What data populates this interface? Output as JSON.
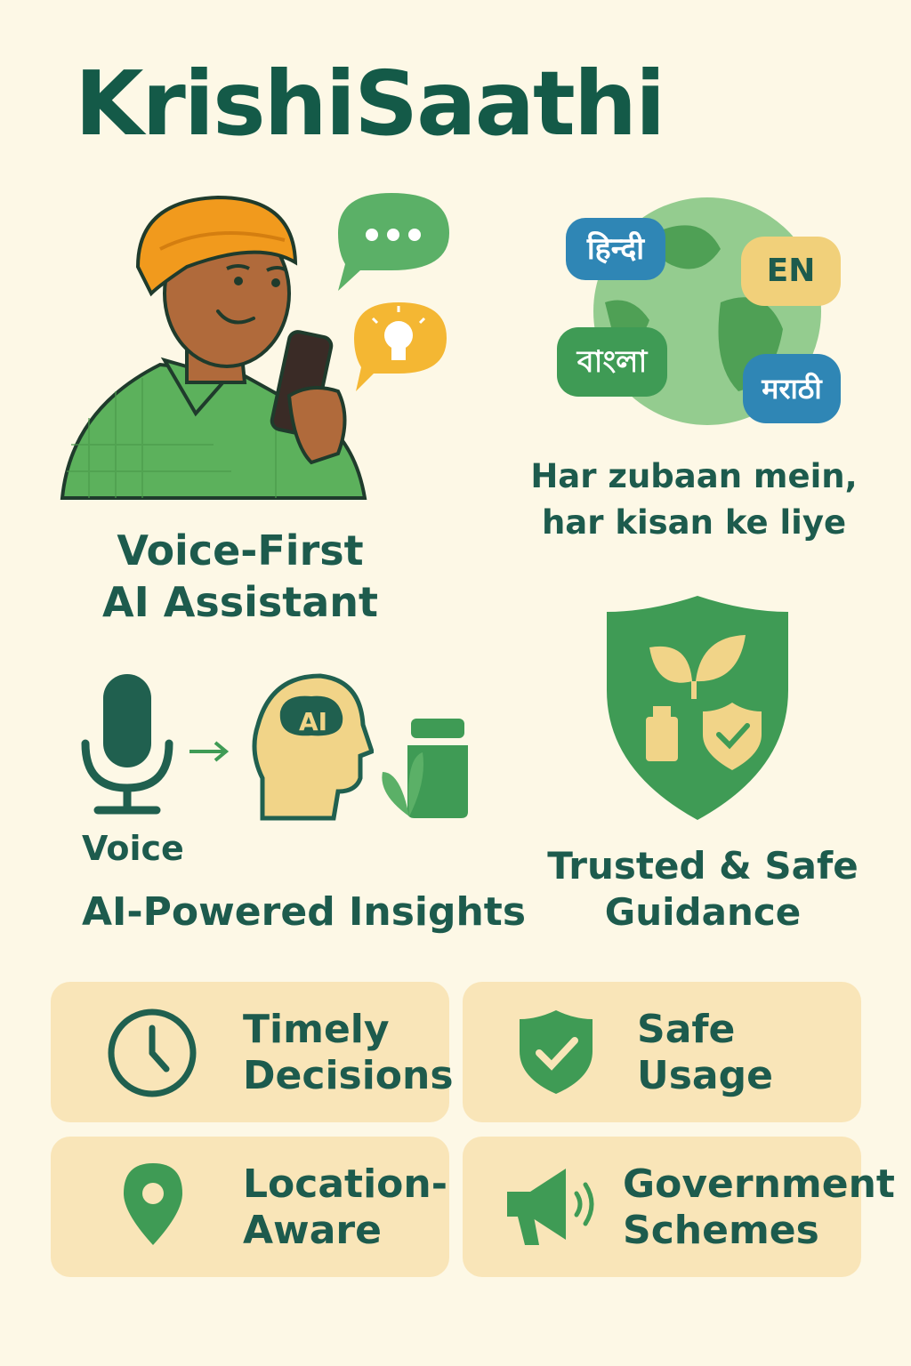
{
  "app": {
    "title": "KrishiSaathi"
  },
  "features": {
    "voice_first": "Voice-First\nAI Assistant",
    "languages": {
      "bubbles": [
        "हिन्दी",
        "EN",
        "বাংলা",
        "मराठी"
      ],
      "tagline": "Har zubaan mein,\nhar kisan ke liye"
    },
    "ai_insights": {
      "voice_label": "Voice",
      "ai_badge": "AI",
      "caption": "AI-Powered Insights"
    },
    "trusted": "Trusted & Safe\nGuidance"
  },
  "cards": [
    {
      "label": "Timely\nDecisions",
      "icon": "clock-icon"
    },
    {
      "label": "Safe\nUsage",
      "icon": "shield-check-icon"
    },
    {
      "label": "Location-\nAware",
      "icon": "location-pin-icon"
    },
    {
      "label": "Government\nSchemes",
      "icon": "megaphone-icon"
    }
  ],
  "colors": {
    "background": "#fdf8e6",
    "primary_text": "#145a48",
    "green": "#3f9b55",
    "card": "#f9e5b8",
    "turban": "#f19a1d",
    "bubble_yellow": "#f4b733",
    "bubble_blue": "#2f86b5"
  }
}
